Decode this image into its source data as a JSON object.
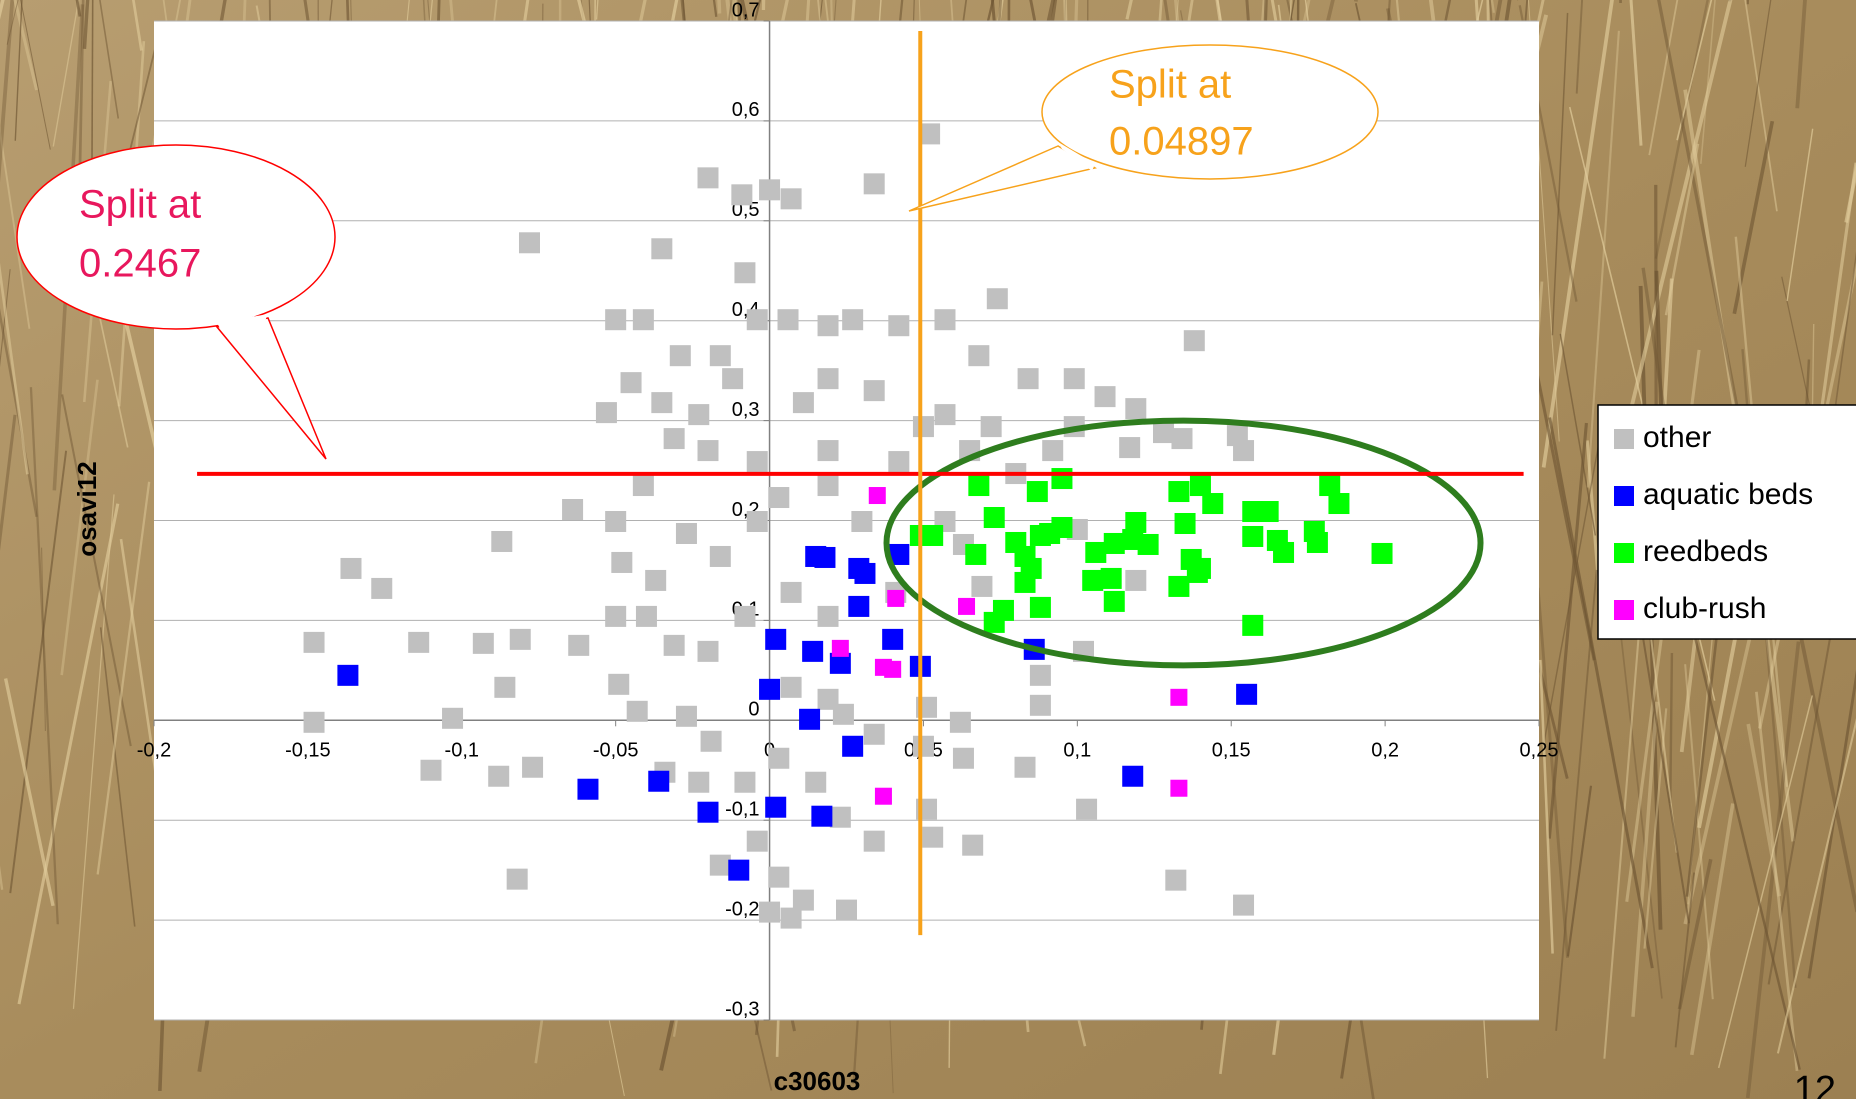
{
  "chart_data": {
    "type": "scatter",
    "x_label": "c30603",
    "y_label": "osavi12",
    "xlim": [
      -0.2,
      0.25
    ],
    "ylim": [
      -0.3,
      0.7
    ],
    "xticks": [
      {
        "value": -0.2,
        "label": "-0,2"
      },
      {
        "value": -0.15,
        "label": "-0,15"
      },
      {
        "value": -0.1,
        "label": "-0,1"
      },
      {
        "value": -0.05,
        "label": "-0,05"
      },
      0,
      {
        "value": 0.05,
        "label": "0,05"
      },
      {
        "value": 0.1,
        "label": "0,1"
      },
      {
        "value": 0.15,
        "label": "0,15"
      },
      {
        "value": 0.2,
        "label": "0,2"
      },
      {
        "value": 0.25,
        "label": "0,25"
      }
    ],
    "yticks": [
      {
        "value": -0.3,
        "label": "-0,3"
      },
      {
        "value": -0.2,
        "label": "-0,2"
      },
      {
        "value": -0.1,
        "label": "-0,1"
      },
      0,
      {
        "value": 0.1,
        "label": "0,1"
      },
      {
        "value": 0.2,
        "label": "0,2"
      },
      {
        "value": 0.3,
        "label": "0,3"
      },
      {
        "value": 0.4,
        "label": "0,4"
      },
      {
        "value": 0.5,
        "label": "0,5"
      },
      {
        "value": 0.6,
        "label": "0,6"
      },
      {
        "value": 0.7,
        "label": "0,7"
      }
    ],
    "grid": true,
    "legend": "right",
    "series": [
      {
        "name": "other",
        "color": "#c0c0c0",
        "x": [
          0.052,
          0.034,
          -0.02,
          -0.078,
          0.074,
          0.138,
          -0.148,
          -0.148,
          -0.136,
          -0.126,
          -0.114,
          -0.103,
          -0.087,
          -0.086,
          -0.082,
          -0.093,
          -0.081,
          -0.11,
          -0.088,
          -0.077,
          -0.064,
          -0.05,
          -0.041,
          -0.045,
          -0.053,
          -0.035,
          -0.009,
          0,
          0.007,
          -0.008,
          -0.004,
          0.006,
          0.019,
          0.027,
          0.042,
          0.057,
          0.068,
          0.084,
          0.099,
          0.109,
          0.119,
          0.128,
          0.152,
          0.154,
          0.134,
          0.099,
          0.092,
          0.08,
          0.065,
          0.05,
          0.034,
          0.019,
          0.011,
          -0.012,
          -0.023,
          -0.031,
          -0.02,
          -0.004,
          0.019,
          0.042,
          -0.041,
          -0.05,
          -0.027,
          -0.016,
          -0.004,
          0.003,
          0.019,
          0.03,
          -0.048,
          -0.037,
          -0.05,
          -0.062,
          -0.04,
          -0.031,
          -0.02,
          -0.008,
          0.007,
          0.019,
          0.007,
          0.019,
          -0.049,
          -0.043,
          -0.027,
          -0.019,
          0.024,
          0.034,
          0.051,
          0.062,
          0.063,
          0.051,
          0.053,
          0.066,
          0.083,
          0.088,
          0.088,
          0.102,
          0.103,
          0.119,
          0.132,
          0.154,
          -0.008,
          0.003,
          0.015,
          0.023,
          0.034,
          -0.004,
          0.003,
          0.011,
          0.025,
          0,
          0.007,
          -0.016,
          -0.023,
          -0.034,
          0.05,
          -0.035,
          -0.029,
          -0.016,
          0.057,
          0.072,
          0.117,
          0.1,
          0.069,
          0.057,
          0.063,
          0.041
        ],
        "y": [
          0.587,
          0.537,
          0.543,
          0.478,
          0.422,
          0.38,
          0.078,
          -0.002,
          0.152,
          0.132,
          0.078,
          0.002,
          0.179,
          0.033,
          -0.159,
          0.077,
          0.081,
          -0.05,
          -0.056,
          -0.047,
          0.211,
          0.401,
          0.401,
          0.338,
          0.308,
          0.472,
          0.526,
          0.531,
          0.522,
          0.448,
          0.401,
          0.401,
          0.395,
          0.401,
          0.395,
          0.401,
          0.365,
          0.342,
          0.342,
          0.324,
          0.312,
          0.288,
          0.285,
          0.27,
          0.282,
          0.294,
          0.27,
          0.247,
          0.27,
          0.294,
          0.33,
          0.342,
          0.318,
          0.342,
          0.306,
          0.282,
          0.27,
          0.259,
          0.27,
          0.259,
          0.235,
          0.199,
          0.187,
          0.164,
          0.199,
          0.223,
          0.235,
          0.199,
          0.158,
          0.14,
          0.104,
          0.075,
          0.104,
          0.075,
          0.069,
          0.104,
          0.128,
          0.104,
          0.033,
          0.021,
          0.036,
          0.009,
          0.004,
          -0.021,
          0.006,
          -0.014,
          0.013,
          -0.002,
          -0.038,
          -0.089,
          -0.117,
          -0.125,
          -0.047,
          0.015,
          0.045,
          0.069,
          -0.089,
          0.14,
          -0.16,
          -0.185,
          -0.062,
          -0.038,
          -0.062,
          -0.097,
          -0.121,
          -0.121,
          -0.157,
          -0.18,
          -0.19,
          -0.192,
          -0.198,
          -0.145,
          -0.062,
          -0.052,
          -0.026,
          0.318,
          0.365,
          0.365,
          0.306,
          0.294,
          0.273,
          0.191,
          0.134,
          0.199,
          0.176,
          0.128
        ]
      },
      {
        "name": "aquatic beds",
        "color": "#0000ff",
        "x": [
          -0.137,
          -0.059,
          -0.036,
          -0.02,
          -0.01,
          0.002,
          0.0,
          0.014,
          0.015,
          0.018,
          0.029,
          0.031,
          0.029,
          0.023,
          0.027,
          0.013,
          0.002,
          0.017,
          0.04,
          0.042,
          0.049,
          0.086,
          0.118,
          0.155
        ],
        "y": [
          0.045,
          -0.069,
          -0.061,
          -0.092,
          -0.15,
          0.081,
          0.031,
          0.069,
          0.164,
          0.163,
          0.152,
          0.147,
          0.114,
          0.057,
          -0.026,
          0.001,
          -0.087,
          -0.096,
          0.081,
          0.166,
          0.054,
          0.071,
          -0.056,
          0.026
        ]
      },
      {
        "name": "reedbeds",
        "color": "#00ff00",
        "x": [
          0.049,
          0.053,
          0.068,
          0.073,
          0.067,
          0.076,
          0.073,
          0.087,
          0.095,
          0.083,
          0.08,
          0.085,
          0.088,
          0.091,
          0.095,
          0.083,
          0.088,
          0.106,
          0.105,
          0.112,
          0.111,
          0.112,
          0.119,
          0.118,
          0.123,
          0.133,
          0.14,
          0.144,
          0.135,
          0.133,
          0.137,
          0.14,
          0.139,
          0.157,
          0.162,
          0.157,
          0.165,
          0.167,
          0.177,
          0.178,
          0.182,
          0.185,
          0.199,
          0.157
        ],
        "y": [
          0.185,
          0.185,
          0.235,
          0.203,
          0.166,
          0.11,
          0.098,
          0.229,
          0.242,
          0.164,
          0.178,
          0.152,
          0.185,
          0.187,
          0.193,
          0.138,
          0.113,
          0.168,
          0.14,
          0.177,
          0.142,
          0.119,
          0.198,
          0.181,
          0.176,
          0.229,
          0.235,
          0.217,
          0.197,
          0.134,
          0.161,
          0.152,
          0.148,
          0.209,
          0.209,
          0.184,
          0.18,
          0.168,
          0.189,
          0.178,
          0.235,
          0.217,
          0.167,
          0.095
        ]
      },
      {
        "name": "club-rush",
        "color": "#ff00ff",
        "x": [
          0.035,
          0.041,
          0.023,
          0.037,
          0.04,
          0.064,
          0.133,
          0.133,
          0.037
        ],
        "y": [
          0.225,
          0.122,
          0.072,
          0.053,
          0.051,
          0.114,
          0.023,
          -0.068,
          -0.076
        ]
      }
    ],
    "annotations": [
      {
        "axis": "y",
        "value": 0.2467,
        "extent": [
          -0.186,
          0.245
        ],
        "color": "#ff0000",
        "text_color": "#e8175d",
        "lines": [
          "Split at",
          "0.2467"
        ]
      },
      {
        "axis": "x",
        "value": 0.04897,
        "extent": [
          -0.215,
          0.69
        ],
        "color": "#f7a21b",
        "text_color": "#f7a21b",
        "lines": [
          "Split at",
          "0.04897"
        ]
      }
    ],
    "ellipse": {
      "xlim": [
        0.038,
        0.231
      ],
      "ylim": [
        0.055,
        0.3
      ],
      "color": "#2e7d1e"
    },
    "page_number": "12"
  }
}
